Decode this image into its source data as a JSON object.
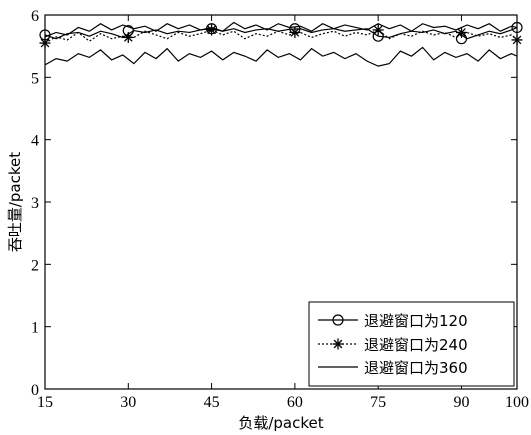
{
  "chart_data": {
    "type": "line",
    "xlabel": "负载/packet",
    "ylabel": "吞吐量/packet",
    "xlim": [
      15,
      100
    ],
    "ylim": [
      0,
      6
    ],
    "xticks": [
      15,
      30,
      45,
      60,
      75,
      90,
      100
    ],
    "yticks": [
      0,
      1,
      2,
      3,
      4,
      5,
      6
    ],
    "grid": false,
    "legend_position": "bottom-right",
    "series": [
      {
        "name": "退避窗口为120",
        "line_style": "solid",
        "marker": "circle",
        "color": "#000000",
        "x": [
          15,
          17,
          19,
          21,
          23,
          25,
          27,
          29,
          31,
          33,
          35,
          37,
          39,
          41,
          43,
          45,
          47,
          49,
          51,
          53,
          55,
          57,
          59,
          61,
          63,
          65,
          67,
          69,
          71,
          73,
          75,
          77,
          79,
          81,
          83,
          85,
          87,
          89,
          91,
          93,
          95,
          97,
          99,
          100
        ],
        "y": [
          5.68,
          5.62,
          5.7,
          5.72,
          5.66,
          5.74,
          5.7,
          5.64,
          5.75,
          5.72,
          5.76,
          5.7,
          5.74,
          5.72,
          5.76,
          5.78,
          5.74,
          5.78,
          5.72,
          5.76,
          5.78,
          5.74,
          5.77,
          5.78,
          5.72,
          5.76,
          5.78,
          5.74,
          5.76,
          5.78,
          5.66,
          5.64,
          5.7,
          5.74,
          5.72,
          5.76,
          5.7,
          5.74,
          5.62,
          5.68,
          5.74,
          5.7,
          5.76,
          5.8
        ],
        "marker_x": [
          15,
          30,
          45,
          60,
          75,
          90,
          100
        ],
        "marker_y": [
          5.68,
          5.75,
          5.78,
          5.78,
          5.66,
          5.62,
          5.8
        ]
      },
      {
        "name": "退避窗口为240",
        "line_style": "dotted",
        "marker": "star",
        "color": "#000000",
        "x": [
          15,
          17,
          19,
          21,
          23,
          25,
          27,
          29,
          31,
          33,
          35,
          37,
          39,
          41,
          43,
          45,
          47,
          49,
          51,
          53,
          55,
          57,
          59,
          61,
          63,
          65,
          67,
          69,
          71,
          73,
          75,
          77,
          79,
          81,
          83,
          85,
          87,
          89,
          91,
          93,
          95,
          97,
          99,
          100
        ],
        "y": [
          5.55,
          5.65,
          5.6,
          5.72,
          5.58,
          5.7,
          5.62,
          5.66,
          5.64,
          5.74,
          5.68,
          5.62,
          5.72,
          5.66,
          5.7,
          5.76,
          5.68,
          5.74,
          5.62,
          5.7,
          5.66,
          5.74,
          5.68,
          5.72,
          5.64,
          5.7,
          5.74,
          5.66,
          5.72,
          5.68,
          5.76,
          5.62,
          5.7,
          5.66,
          5.74,
          5.68,
          5.72,
          5.64,
          5.72,
          5.66,
          5.7,
          5.64,
          5.68,
          5.6
        ],
        "marker_x": [
          15,
          30,
          45,
          60,
          75,
          90,
          100
        ],
        "marker_y": [
          5.55,
          5.64,
          5.76,
          5.72,
          5.76,
          5.72,
          5.6
        ]
      },
      {
        "name": "退避窗口为360",
        "line_style": "solid",
        "marker": "none",
        "color": "#000000",
        "upper_x": [
          15,
          17,
          19,
          21,
          23,
          25,
          27,
          29,
          31,
          33,
          35,
          37,
          39,
          41,
          43,
          45,
          47,
          49,
          51,
          53,
          55,
          57,
          59,
          61,
          63,
          65,
          67,
          69,
          71,
          73,
          75,
          77,
          79,
          81,
          83,
          85,
          87,
          89,
          91,
          93,
          95,
          97,
          99,
          100
        ],
        "upper_y": [
          5.65,
          5.72,
          5.68,
          5.8,
          5.74,
          5.86,
          5.76,
          5.84,
          5.78,
          5.82,
          5.74,
          5.86,
          5.78,
          5.84,
          5.76,
          5.8,
          5.74,
          5.88,
          5.78,
          5.84,
          5.76,
          5.86,
          5.8,
          5.82,
          5.74,
          5.86,
          5.78,
          5.84,
          5.8,
          5.76,
          5.86,
          5.78,
          5.84,
          5.74,
          5.86,
          5.8,
          5.82,
          5.76,
          5.84,
          5.78,
          5.86,
          5.74,
          5.82,
          5.8
        ],
        "lower_x": [
          15,
          17,
          19,
          21,
          23,
          25,
          27,
          29,
          31,
          33,
          35,
          37,
          39,
          41,
          43,
          45,
          47,
          49,
          51,
          53,
          55,
          57,
          59,
          61,
          63,
          65,
          67,
          69,
          71,
          73,
          75,
          77,
          79,
          81,
          83,
          85,
          87,
          89,
          91,
          93,
          95,
          97,
          99,
          100
        ],
        "lower_y": [
          5.2,
          5.3,
          5.26,
          5.38,
          5.32,
          5.44,
          5.28,
          5.36,
          5.22,
          5.4,
          5.3,
          5.46,
          5.26,
          5.38,
          5.32,
          5.42,
          5.28,
          5.4,
          5.34,
          5.26,
          5.44,
          5.32,
          5.38,
          5.28,
          5.46,
          5.34,
          5.4,
          5.3,
          5.38,
          5.26,
          5.18,
          5.22,
          5.42,
          5.34,
          5.48,
          5.28,
          5.4,
          5.32,
          5.38,
          5.26,
          5.44,
          5.3,
          5.38,
          5.34
        ]
      }
    ]
  }
}
